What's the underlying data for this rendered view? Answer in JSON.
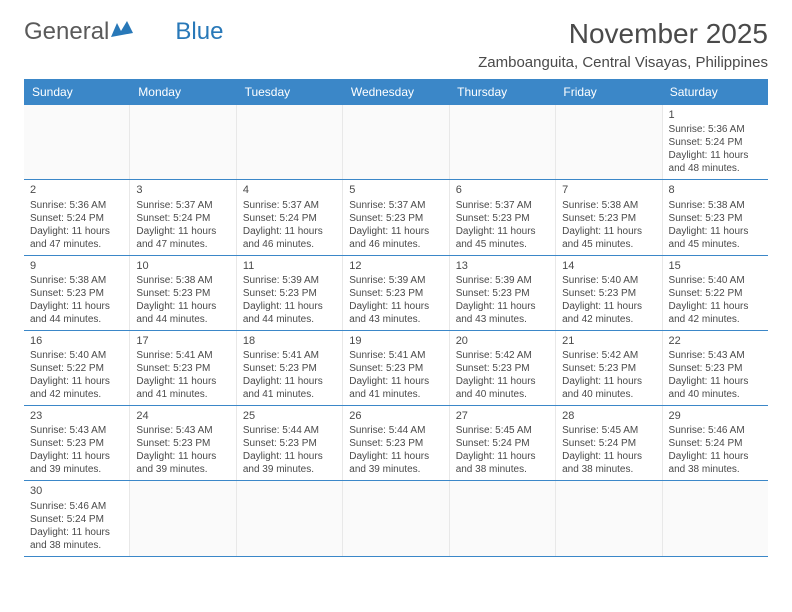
{
  "logo": {
    "text_a": "General",
    "text_b": "Blue"
  },
  "title": "November 2025",
  "location": "Zamboanguita, Central Visayas, Philippines",
  "weekdays": [
    "Sunday",
    "Monday",
    "Tuesday",
    "Wednesday",
    "Thursday",
    "Friday",
    "Saturday"
  ],
  "colors": {
    "header_bg": "#3b87c8",
    "header_text": "#ffffff",
    "text": "#4a4a4a",
    "border": "#3b87c8",
    "cell_border": "#e8e8e8",
    "logo_blue": "#2878b8"
  },
  "weeks": [
    [
      {
        "empty": true
      },
      {
        "empty": true
      },
      {
        "empty": true
      },
      {
        "empty": true
      },
      {
        "empty": true
      },
      {
        "empty": true
      },
      {
        "day": "1",
        "sunrise": "Sunrise: 5:36 AM",
        "sunset": "Sunset: 5:24 PM",
        "daylight": "Daylight: 11 hours and 48 minutes."
      }
    ],
    [
      {
        "day": "2",
        "sunrise": "Sunrise: 5:36 AM",
        "sunset": "Sunset: 5:24 PM",
        "daylight": "Daylight: 11 hours and 47 minutes."
      },
      {
        "day": "3",
        "sunrise": "Sunrise: 5:37 AM",
        "sunset": "Sunset: 5:24 PM",
        "daylight": "Daylight: 11 hours and 47 minutes."
      },
      {
        "day": "4",
        "sunrise": "Sunrise: 5:37 AM",
        "sunset": "Sunset: 5:24 PM",
        "daylight": "Daylight: 11 hours and 46 minutes."
      },
      {
        "day": "5",
        "sunrise": "Sunrise: 5:37 AM",
        "sunset": "Sunset: 5:23 PM",
        "daylight": "Daylight: 11 hours and 46 minutes."
      },
      {
        "day": "6",
        "sunrise": "Sunrise: 5:37 AM",
        "sunset": "Sunset: 5:23 PM",
        "daylight": "Daylight: 11 hours and 45 minutes."
      },
      {
        "day": "7",
        "sunrise": "Sunrise: 5:38 AM",
        "sunset": "Sunset: 5:23 PM",
        "daylight": "Daylight: 11 hours and 45 minutes."
      },
      {
        "day": "8",
        "sunrise": "Sunrise: 5:38 AM",
        "sunset": "Sunset: 5:23 PM",
        "daylight": "Daylight: 11 hours and 45 minutes."
      }
    ],
    [
      {
        "day": "9",
        "sunrise": "Sunrise: 5:38 AM",
        "sunset": "Sunset: 5:23 PM",
        "daylight": "Daylight: 11 hours and 44 minutes."
      },
      {
        "day": "10",
        "sunrise": "Sunrise: 5:38 AM",
        "sunset": "Sunset: 5:23 PM",
        "daylight": "Daylight: 11 hours and 44 minutes."
      },
      {
        "day": "11",
        "sunrise": "Sunrise: 5:39 AM",
        "sunset": "Sunset: 5:23 PM",
        "daylight": "Daylight: 11 hours and 44 minutes."
      },
      {
        "day": "12",
        "sunrise": "Sunrise: 5:39 AM",
        "sunset": "Sunset: 5:23 PM",
        "daylight": "Daylight: 11 hours and 43 minutes."
      },
      {
        "day": "13",
        "sunrise": "Sunrise: 5:39 AM",
        "sunset": "Sunset: 5:23 PM",
        "daylight": "Daylight: 11 hours and 43 minutes."
      },
      {
        "day": "14",
        "sunrise": "Sunrise: 5:40 AM",
        "sunset": "Sunset: 5:23 PM",
        "daylight": "Daylight: 11 hours and 42 minutes."
      },
      {
        "day": "15",
        "sunrise": "Sunrise: 5:40 AM",
        "sunset": "Sunset: 5:22 PM",
        "daylight": "Daylight: 11 hours and 42 minutes."
      }
    ],
    [
      {
        "day": "16",
        "sunrise": "Sunrise: 5:40 AM",
        "sunset": "Sunset: 5:22 PM",
        "daylight": "Daylight: 11 hours and 42 minutes."
      },
      {
        "day": "17",
        "sunrise": "Sunrise: 5:41 AM",
        "sunset": "Sunset: 5:23 PM",
        "daylight": "Daylight: 11 hours and 41 minutes."
      },
      {
        "day": "18",
        "sunrise": "Sunrise: 5:41 AM",
        "sunset": "Sunset: 5:23 PM",
        "daylight": "Daylight: 11 hours and 41 minutes."
      },
      {
        "day": "19",
        "sunrise": "Sunrise: 5:41 AM",
        "sunset": "Sunset: 5:23 PM",
        "daylight": "Daylight: 11 hours and 41 minutes."
      },
      {
        "day": "20",
        "sunrise": "Sunrise: 5:42 AM",
        "sunset": "Sunset: 5:23 PM",
        "daylight": "Daylight: 11 hours and 40 minutes."
      },
      {
        "day": "21",
        "sunrise": "Sunrise: 5:42 AM",
        "sunset": "Sunset: 5:23 PM",
        "daylight": "Daylight: 11 hours and 40 minutes."
      },
      {
        "day": "22",
        "sunrise": "Sunrise: 5:43 AM",
        "sunset": "Sunset: 5:23 PM",
        "daylight": "Daylight: 11 hours and 40 minutes."
      }
    ],
    [
      {
        "day": "23",
        "sunrise": "Sunrise: 5:43 AM",
        "sunset": "Sunset: 5:23 PM",
        "daylight": "Daylight: 11 hours and 39 minutes."
      },
      {
        "day": "24",
        "sunrise": "Sunrise: 5:43 AM",
        "sunset": "Sunset: 5:23 PM",
        "daylight": "Daylight: 11 hours and 39 minutes."
      },
      {
        "day": "25",
        "sunrise": "Sunrise: 5:44 AM",
        "sunset": "Sunset: 5:23 PM",
        "daylight": "Daylight: 11 hours and 39 minutes."
      },
      {
        "day": "26",
        "sunrise": "Sunrise: 5:44 AM",
        "sunset": "Sunset: 5:23 PM",
        "daylight": "Daylight: 11 hours and 39 minutes."
      },
      {
        "day": "27",
        "sunrise": "Sunrise: 5:45 AM",
        "sunset": "Sunset: 5:24 PM",
        "daylight": "Daylight: 11 hours and 38 minutes."
      },
      {
        "day": "28",
        "sunrise": "Sunrise: 5:45 AM",
        "sunset": "Sunset: 5:24 PM",
        "daylight": "Daylight: 11 hours and 38 minutes."
      },
      {
        "day": "29",
        "sunrise": "Sunrise: 5:46 AM",
        "sunset": "Sunset: 5:24 PM",
        "daylight": "Daylight: 11 hours and 38 minutes."
      }
    ],
    [
      {
        "day": "30",
        "sunrise": "Sunrise: 5:46 AM",
        "sunset": "Sunset: 5:24 PM",
        "daylight": "Daylight: 11 hours and 38 minutes."
      },
      {
        "empty": true
      },
      {
        "empty": true
      },
      {
        "empty": true
      },
      {
        "empty": true
      },
      {
        "empty": true
      },
      {
        "empty": true
      }
    ]
  ]
}
